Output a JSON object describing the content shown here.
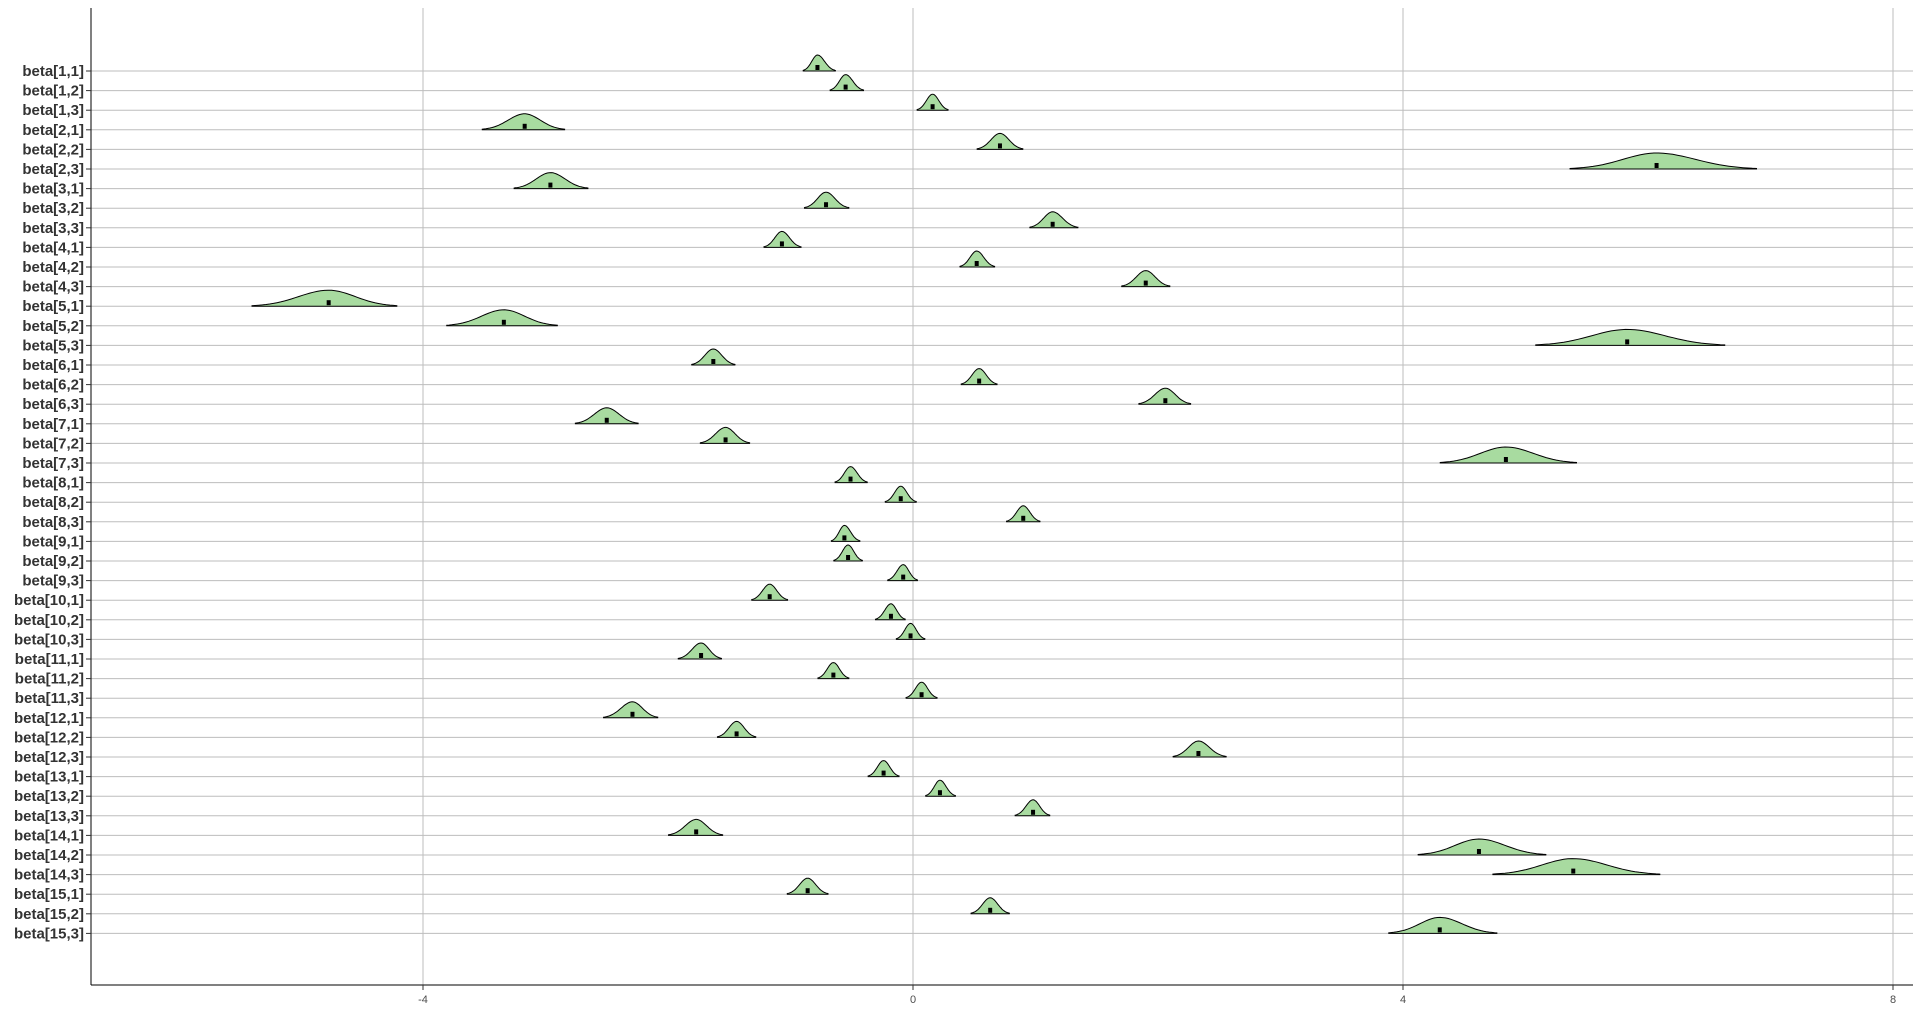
{
  "chart_data": {
    "type": "ridgeline",
    "title": "",
    "xlabel": "",
    "ylabel": "",
    "xlim": [
      -6.7,
      8.2
    ],
    "x_ticks": [
      -4,
      0,
      4,
      8
    ],
    "x_tick_labels": [
      "-4",
      "0",
      "4",
      "8"
    ],
    "grid": true,
    "fill_color": "#a8dba0",
    "outline_color": "#000000",
    "categories": [
      "beta[1,1]",
      "beta[1,2]",
      "beta[1,3]",
      "beta[2,1]",
      "beta[2,2]",
      "beta[2,3]",
      "beta[3,1]",
      "beta[3,2]",
      "beta[3,3]",
      "beta[4,1]",
      "beta[4,2]",
      "beta[4,3]",
      "beta[5,1]",
      "beta[5,2]",
      "beta[5,3]",
      "beta[6,1]",
      "beta[6,2]",
      "beta[6,3]",
      "beta[7,1]",
      "beta[7,2]",
      "beta[7,3]",
      "beta[8,1]",
      "beta[8,2]",
      "beta[8,3]",
      "beta[9,1]",
      "beta[9,2]",
      "beta[9,3]",
      "beta[10,1]",
      "beta[10,2]",
      "beta[10,3]",
      "beta[11,1]",
      "beta[11,2]",
      "beta[11,3]",
      "beta[12,1]",
      "beta[12,2]",
      "beta[12,3]",
      "beta[13,1]",
      "beta[13,2]",
      "beta[13,3]",
      "beta[14,1]",
      "beta[14,2]",
      "beta[14,3]",
      "beta[15,1]",
      "beta[15,2]",
      "beta[15,3]"
    ],
    "distributions": [
      {
        "mean": -0.78,
        "low": -0.9,
        "high": -0.63
      },
      {
        "mean": -0.55,
        "low": -0.68,
        "high": -0.4
      },
      {
        "mean": 0.16,
        "low": 0.03,
        "high": 0.29
      },
      {
        "mean": -3.17,
        "low": -3.52,
        "high": -2.84
      },
      {
        "mean": 0.71,
        "low": 0.52,
        "high": 0.9
      },
      {
        "mean": 6.07,
        "low": 5.36,
        "high": 6.89
      },
      {
        "mean": -2.96,
        "low": -3.26,
        "high": -2.65
      },
      {
        "mean": -0.71,
        "low": -0.89,
        "high": -0.52
      },
      {
        "mean": 1.14,
        "low": 0.95,
        "high": 1.35
      },
      {
        "mean": -1.07,
        "low": -1.22,
        "high": -0.91
      },
      {
        "mean": 0.52,
        "low": 0.38,
        "high": 0.67
      },
      {
        "mean": 1.9,
        "low": 1.7,
        "high": 2.1
      },
      {
        "mean": -4.77,
        "low": -5.4,
        "high": -4.21
      },
      {
        "mean": -3.34,
        "low": -3.81,
        "high": -2.9
      },
      {
        "mean": 5.83,
        "low": 5.08,
        "high": 6.63
      },
      {
        "mean": -1.63,
        "low": -1.81,
        "high": -1.45
      },
      {
        "mean": 0.54,
        "low": 0.39,
        "high": 0.69
      },
      {
        "mean": 2.06,
        "low": 1.84,
        "high": 2.27
      },
      {
        "mean": -2.5,
        "low": -2.76,
        "high": -2.24
      },
      {
        "mean": -1.53,
        "low": -1.74,
        "high": -1.33
      },
      {
        "mean": 4.84,
        "low": 4.3,
        "high": 5.42
      },
      {
        "mean": -0.51,
        "low": -0.64,
        "high": -0.37
      },
      {
        "mean": -0.1,
        "low": -0.23,
        "high": 0.03
      },
      {
        "mean": 0.9,
        "low": 0.76,
        "high": 1.04
      },
      {
        "mean": -0.56,
        "low": -0.67,
        "high": -0.43
      },
      {
        "mean": -0.53,
        "low": -0.65,
        "high": -0.41
      },
      {
        "mean": -0.08,
        "low": -0.21,
        "high": 0.04
      },
      {
        "mean": -1.17,
        "low": -1.32,
        "high": -1.02
      },
      {
        "mean": -0.18,
        "low": -0.31,
        "high": -0.06
      },
      {
        "mean": -0.02,
        "low": -0.14,
        "high": 0.1
      },
      {
        "mean": -1.73,
        "low": -1.92,
        "high": -1.56
      },
      {
        "mean": -0.65,
        "low": -0.78,
        "high": -0.52
      },
      {
        "mean": 0.07,
        "low": -0.06,
        "high": 0.2
      },
      {
        "mean": -2.29,
        "low": -2.53,
        "high": -2.08
      },
      {
        "mean": -1.44,
        "low": -1.6,
        "high": -1.28
      },
      {
        "mean": 2.33,
        "low": 2.12,
        "high": 2.56
      },
      {
        "mean": -0.24,
        "low": -0.37,
        "high": -0.11
      },
      {
        "mean": 0.22,
        "low": 0.1,
        "high": 0.35
      },
      {
        "mean": 0.98,
        "low": 0.83,
        "high": 1.12
      },
      {
        "mean": -1.77,
        "low": -2.0,
        "high": -1.55
      },
      {
        "mean": 4.62,
        "low": 4.12,
        "high": 5.17
      },
      {
        "mean": 5.39,
        "low": 4.73,
        "high": 6.1
      },
      {
        "mean": -0.86,
        "low": -1.03,
        "high": -0.69
      },
      {
        "mean": 0.63,
        "low": 0.47,
        "high": 0.79
      },
      {
        "mean": 4.3,
        "low": 3.88,
        "high": 4.77
      }
    ]
  }
}
